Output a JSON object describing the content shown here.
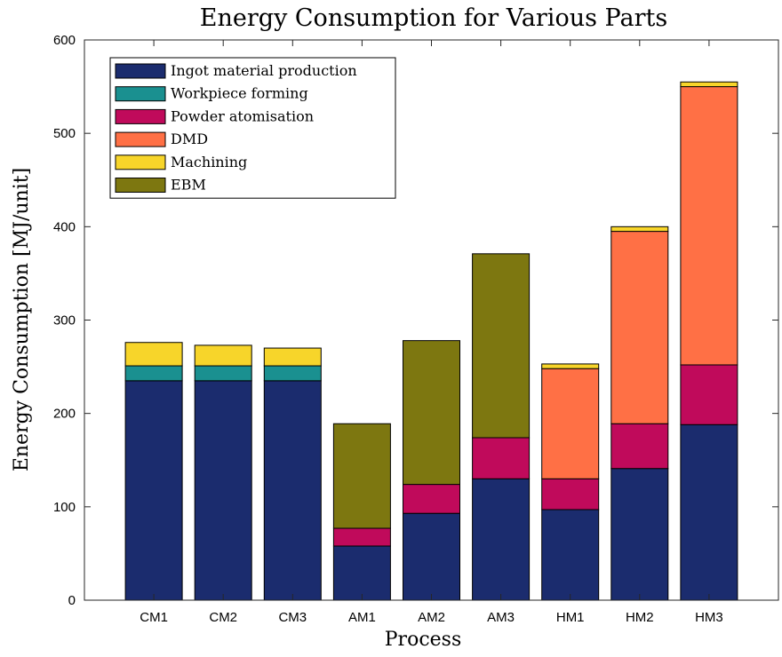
{
  "chart_data": {
    "type": "bar",
    "stacked": true,
    "title": "Energy Consumption for Various Parts",
    "xlabel": "Process",
    "ylabel": "Energy Consumption [MJ/unit]",
    "ylim": [
      0,
      600
    ],
    "yticks": [
      0,
      100,
      200,
      300,
      400,
      500,
      600
    ],
    "grid": false,
    "legend_position": "top-left",
    "categories": [
      "CM1",
      "CM2",
      "CM3",
      "AM1",
      "AM2",
      "AM3",
      "HM1",
      "HM2",
      "HM3"
    ],
    "series": [
      {
        "name": "Ingot material production",
        "color": "#1b2c6e",
        "values": [
          235,
          235,
          235,
          58,
          93,
          130,
          97,
          141,
          188
        ]
      },
      {
        "name": "Workpiece forming",
        "color": "#1a9090",
        "values": [
          16,
          16,
          16,
          0,
          0,
          0,
          0,
          0,
          0
        ]
      },
      {
        "name": "Powder atomisation",
        "color": "#c00a5b",
        "values": [
          0,
          0,
          0,
          19,
          31,
          44,
          33,
          48,
          64
        ]
      },
      {
        "name": "DMD",
        "color": "#ff7045",
        "values": [
          0,
          0,
          0,
          0,
          0,
          0,
          118,
          206,
          298
        ]
      },
      {
        "name": "Machining",
        "color": "#f7d52a",
        "values": [
          25,
          22,
          19,
          0,
          0,
          0,
          5,
          5,
          5
        ]
      },
      {
        "name": "EBM",
        "color": "#7d7710",
        "values": [
          0,
          0,
          0,
          112,
          154,
          197,
          0,
          0,
          0
        ]
      }
    ]
  }
}
